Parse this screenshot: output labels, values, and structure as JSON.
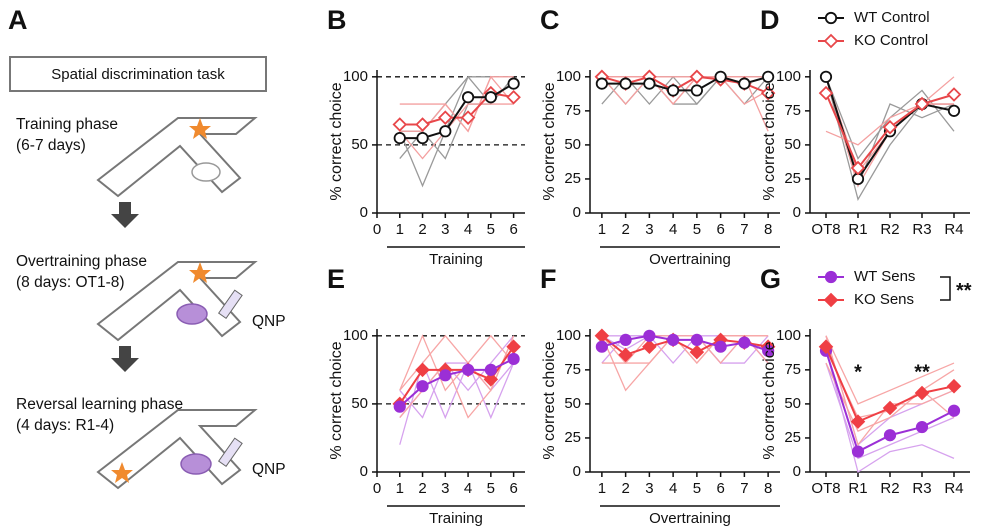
{
  "panel_a": {
    "label": "A",
    "task": "Spatial discrimination task",
    "phases": [
      {
        "title": "Training phase",
        "detail": "(6-7 days)"
      },
      {
        "title": "Overtraining phase",
        "detail": "(8 days: OT1-8)",
        "drug": "QNP"
      },
      {
        "title": "Reversal learning phase",
        "detail": "(4 days: R1-4)",
        "drug": "QNP"
      }
    ]
  },
  "chart_data": [
    {
      "type": "line",
      "panel": "B",
      "ylabel": "% correct choice",
      "xlabel": "Training",
      "x": [
        1,
        2,
        3,
        4,
        5,
        6
      ],
      "xlim": [
        0,
        6.5
      ],
      "xticks": [
        0,
        1,
        2,
        3,
        4,
        5,
        6
      ],
      "ylim": [
        0,
        105
      ],
      "yticks": [
        0,
        50,
        100
      ],
      "ref_lines": [
        50,
        100
      ],
      "series": [
        {
          "color": "#9a9a9a",
          "values": [
            60,
            20,
            60,
            100,
            100,
            100
          ]
        },
        {
          "color": "#9a9a9a",
          "values": [
            60,
            60,
            40,
            80,
            80,
            100
          ]
        },
        {
          "color": "#9a9a9a",
          "values": [
            40,
            60,
            80,
            100,
            80,
            100
          ]
        },
        {
          "color": "#f4a0a0",
          "values": [
            80,
            80,
            80,
            60,
            100,
            80
          ]
        },
        {
          "color": "#f4a0a0",
          "values": [
            60,
            40,
            60,
            80,
            80,
            80
          ]
        },
        {
          "color": "#f4a0a0",
          "values": [
            60,
            60,
            80,
            60,
            100,
            100
          ]
        },
        {
          "color": "#e8474a",
          "marker": "diamond",
          "filled": false,
          "values": [
            65,
            65,
            70,
            70,
            88,
            85
          ]
        },
        {
          "color": "#111111",
          "marker": "circle",
          "filled": false,
          "values": [
            55,
            55,
            60,
            85,
            85,
            95
          ]
        }
      ]
    },
    {
      "type": "line",
      "panel": "C",
      "ylabel": "% correct choice",
      "xlabel": "Overtraining",
      "x": [
        1,
        2,
        3,
        4,
        5,
        6,
        7,
        8
      ],
      "xlim": [
        0.5,
        8.5
      ],
      "xticks": [
        1,
        2,
        3,
        4,
        5,
        6,
        7,
        8
      ],
      "ylim": [
        0,
        105
      ],
      "yticks": [
        0,
        25,
        50,
        75,
        100
      ],
      "series": [
        {
          "color": "#9a9a9a",
          "values": [
            100,
            80,
            100,
            80,
            80,
            100,
            100,
            100
          ]
        },
        {
          "color": "#9a9a9a",
          "values": [
            80,
            100,
            80,
            100,
            80,
            100,
            80,
            100
          ]
        },
        {
          "color": "#9a9a9a",
          "values": [
            100,
            100,
            100,
            100,
            100,
            100,
            100,
            100
          ]
        },
        {
          "color": "#f4a0a0",
          "values": [
            100,
            100,
            100,
            80,
            100,
            100,
            100,
            60
          ]
        },
        {
          "color": "#f4a0a0",
          "values": [
            100,
            80,
            100,
            100,
            100,
            100,
            100,
            100
          ]
        },
        {
          "color": "#f4a0a0",
          "values": [
            100,
            100,
            100,
            80,
            100,
            100,
            80,
            90
          ]
        },
        {
          "color": "#e8474a",
          "marker": "diamond",
          "filled": false,
          "values": [
            100,
            95,
            100,
            90,
            100,
            98,
            95,
            88
          ]
        },
        {
          "color": "#111111",
          "marker": "circle",
          "filled": false,
          "values": [
            95,
            95,
            95,
            90,
            90,
            100,
            95,
            100
          ]
        }
      ]
    },
    {
      "type": "line",
      "panel": "D",
      "ylabel": "% correct choice",
      "categories": [
        "OT8",
        "R1",
        "R2",
        "R3",
        "R4"
      ],
      "ylim": [
        0,
        105
      ],
      "yticks": [
        0,
        25,
        50,
        75,
        100
      ],
      "series": [
        {
          "color": "#9a9a9a",
          "values": [
            100,
            10,
            50,
            80,
            80
          ]
        },
        {
          "color": "#9a9a9a",
          "values": [
            100,
            40,
            70,
            90,
            60
          ]
        },
        {
          "color": "#9a9a9a",
          "values": [
            100,
            20,
            80,
            70,
            80
          ]
        },
        {
          "color": "#f4a0a0",
          "values": [
            100,
            30,
            60,
            80,
            100
          ]
        },
        {
          "color": "#f4a0a0",
          "values": [
            60,
            50,
            70,
            80,
            80
          ]
        },
        {
          "color": "#f4a0a0",
          "values": [
            100,
            20,
            60,
            80,
            80
          ]
        },
        {
          "name": "WT Control",
          "color": "#111111",
          "marker": "circle",
          "filled": false,
          "values": [
            100,
            25,
            60,
            80,
            75
          ]
        },
        {
          "name": "KO Control",
          "color": "#e8474a",
          "marker": "diamond",
          "filled": false,
          "values": [
            88,
            33,
            63,
            80,
            87
          ]
        }
      ]
    },
    {
      "type": "line",
      "panel": "E",
      "ylabel": "% correct choice",
      "xlabel": "Training",
      "x": [
        1,
        2,
        3,
        4,
        5,
        6
      ],
      "xlim": [
        0,
        6.5
      ],
      "xticks": [
        0,
        1,
        2,
        3,
        4,
        5,
        6
      ],
      "ylim": [
        0,
        105
      ],
      "yticks": [
        0,
        50,
        100
      ],
      "ref_lines": [
        50,
        100
      ],
      "series": [
        {
          "color": "#d6a2ee",
          "values": [
            20,
            80,
            40,
            80,
            40,
            80
          ]
        },
        {
          "color": "#d6a2ee",
          "values": [
            40,
            60,
            80,
            60,
            80,
            100
          ]
        },
        {
          "color": "#d6a2ee",
          "values": [
            60,
            40,
            80,
            80,
            60,
            80
          ]
        },
        {
          "color": "#f7a6a6",
          "values": [
            60,
            100,
            60,
            80,
            100,
            80
          ]
        },
        {
          "color": "#f7a6a6",
          "values": [
            40,
            60,
            80,
            40,
            60,
            100
          ]
        },
        {
          "color": "#f7a6a6",
          "values": [
            60,
            80,
            100,
            80,
            60,
            100
          ]
        },
        {
          "color": "#ef3f44",
          "marker": "diamond",
          "filled": true,
          "values": [
            50,
            75,
            75,
            75,
            68,
            92
          ]
        },
        {
          "color": "#9b2fd6",
          "marker": "circle",
          "filled": true,
          "values": [
            48,
            63,
            71,
            75,
            75,
            83
          ]
        }
      ]
    },
    {
      "type": "line",
      "panel": "F",
      "ylabel": "% correct choice",
      "xlabel": "Overtraining",
      "x": [
        1,
        2,
        3,
        4,
        5,
        6,
        7,
        8
      ],
      "xlim": [
        0.5,
        8.5
      ],
      "xticks": [
        1,
        2,
        3,
        4,
        5,
        6,
        7,
        8
      ],
      "ylim": [
        0,
        105
      ],
      "yticks": [
        0,
        25,
        50,
        75,
        100
      ],
      "series": [
        {
          "color": "#d6a2ee",
          "values": [
            100,
            100,
            100,
            100,
            100,
            100,
            100,
            80
          ]
        },
        {
          "color": "#d6a2ee",
          "values": [
            80,
            100,
            100,
            80,
            100,
            80,
            100,
            80
          ]
        },
        {
          "color": "#d6a2ee",
          "values": [
            100,
            90,
            100,
            100,
            100,
            80,
            80,
            100
          ]
        },
        {
          "color": "#f7a6a6",
          "values": [
            100,
            60,
            80,
            100,
            80,
            100,
            100,
            100
          ]
        },
        {
          "color": "#f7a6a6",
          "values": [
            100,
            80,
            100,
            100,
            80,
            100,
            100,
            100
          ]
        },
        {
          "color": "#f7a6a6",
          "values": [
            80,
            80,
            80,
            100,
            100,
            80,
            100,
            80
          ]
        },
        {
          "color": "#ef3f44",
          "marker": "diamond",
          "filled": true,
          "values": [
            100,
            86,
            92,
            97,
            88,
            97,
            95,
            92
          ]
        },
        {
          "color": "#9b2fd6",
          "marker": "circle",
          "filled": true,
          "values": [
            92,
            97,
            100,
            97,
            97,
            92,
            95,
            89
          ]
        }
      ]
    },
    {
      "type": "line",
      "panel": "G",
      "ylabel": "% correct choice",
      "categories": [
        "OT8",
        "R1",
        "R2",
        "R3",
        "R4"
      ],
      "ylim": [
        0,
        105
      ],
      "yticks": [
        0,
        25,
        50,
        75,
        100
      ],
      "legend_note": "**",
      "annotations": [
        {
          "text": "*",
          "category": "R1"
        },
        {
          "text": "**",
          "category": "R3"
        }
      ],
      "series": [
        {
          "color": "#d6a2ee",
          "values": [
            80,
            10,
            20,
            30,
            40
          ]
        },
        {
          "color": "#d6a2ee",
          "values": [
            100,
            20,
            40,
            50,
            60
          ]
        },
        {
          "color": "#d6a2ee",
          "values": [
            90,
            0,
            15,
            20,
            10
          ]
        },
        {
          "color": "#f7a6a6",
          "values": [
            100,
            50,
            60,
            70,
            80
          ]
        },
        {
          "color": "#f7a6a6",
          "values": [
            80,
            30,
            40,
            60,
            75
          ]
        },
        {
          "color": "#f7a6a6",
          "values": [
            100,
            20,
            50,
            50,
            60
          ]
        },
        {
          "color": "#f7a6a6",
          "values": [
            90,
            40,
            45,
            60,
            40
          ]
        },
        {
          "name": "WT Sens",
          "color": "#9b2fd6",
          "marker": "circle",
          "filled": true,
          "values": [
            89,
            15,
            27,
            33,
            45
          ]
        },
        {
          "name": "KO Sens",
          "color": "#ef3f44",
          "marker": "diamond",
          "filled": true,
          "values": [
            92,
            37,
            47,
            58,
            63
          ]
        }
      ]
    }
  ]
}
